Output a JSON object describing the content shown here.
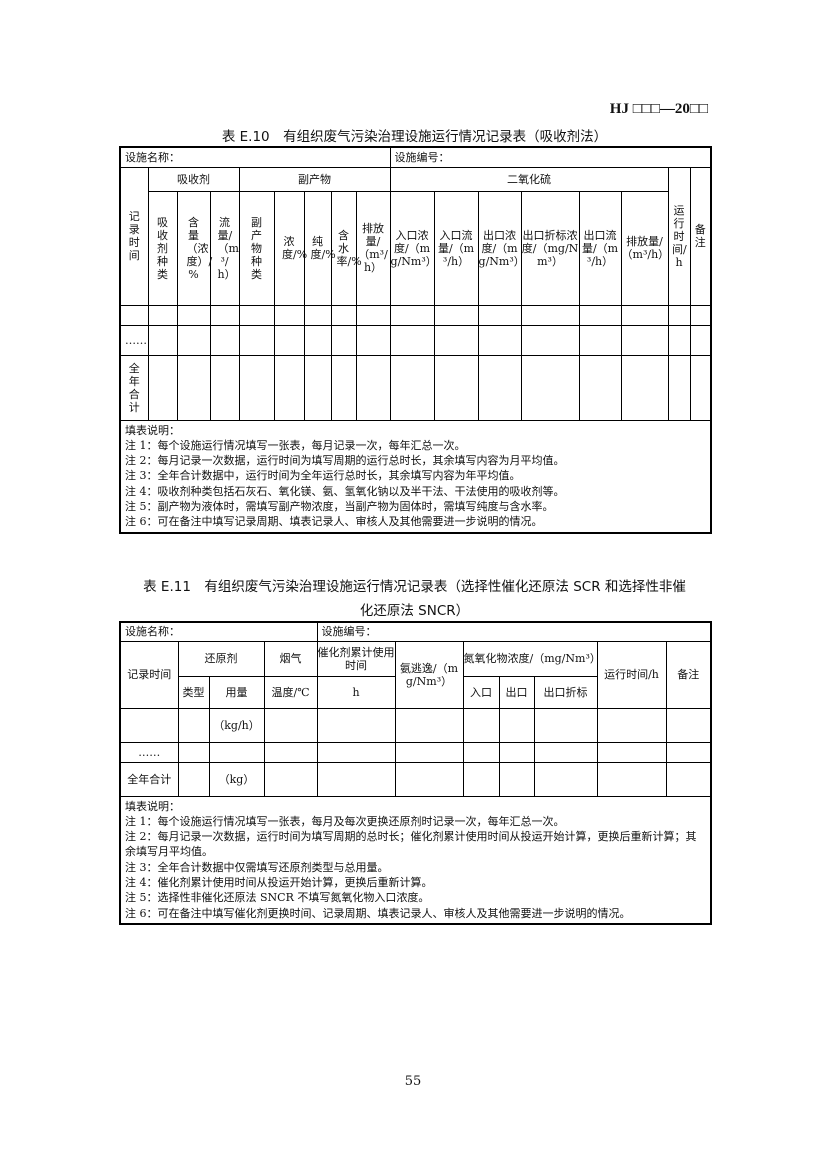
{
  "header": "HJ □□□—20□□",
  "t1": {
    "caption": "表 E.10　有组织废气污染治理设施运行情况记录表（吸收剂法）",
    "facility_name": "设施名称：",
    "facility_no": "设施编号：",
    "groups": [
      "吸收剂",
      "副产物",
      "二氧化硫"
    ],
    "record_time": "记录时间",
    "run_time": "运行时间/h",
    "remark": "备注",
    "cols": [
      "吸收剂种类",
      "含量（浓度）/ %",
      "流量/（m³/h）",
      "副产物种类",
      "浓度/%",
      "纯度/%",
      "含水率/%",
      "排放量/（m³/h）",
      "入口浓度/（mg/Nm³）",
      "入口流量/（m³/h）",
      "出口浓度/（mg/Nm³）",
      "出口折标浓度/（mg/Nm³）",
      "出口流量/（m³/h）",
      "排放量/（m³/h）"
    ],
    "dots": "……",
    "total": "全年合计",
    "notes": [
      "填表说明：",
      "注 1：每个设施运行情况填写一张表，每月记录一次，每年汇总一次。",
      "注 2：每月记录一次数据，运行时间为填写周期的运行总时长，其余填写内容为月平均值。",
      "注 3：全年合计数据中，运行时间为全年运行总时长，其余填写内容为年平均值。",
      "注 4：吸收剂种类包括石灰石、氧化镁、氨、氢氧化钠以及半干法、干法使用的吸收剂等。",
      "注 5：副产物为液体时，需填写副产物浓度，当副产物为固体时，需填写纯度与含水率。",
      "注 6：可在备注中填写记录周期、填表记录人、审核人及其他需要进一步说明的情况。"
    ]
  },
  "t2": {
    "caption1": "表 E.11　有组织废气污染治理设施运行情况记录表（选择性催化还原法 SCR 和选择性非催",
    "caption2": "化还原法 SNCR）",
    "facility_name": "设施名称：",
    "facility_no": "设施编号：",
    "record_time": "记录时间",
    "reductant": "还原剂",
    "flue": "烟气",
    "catalyst": "催化剂累计使用时间",
    "ammonia": "氨逃逸/（mg/Nm³）",
    "nox": "氮氧化物浓度/（mg/Nm³）",
    "run_time": "运行时间/h",
    "remark": "备注",
    "type": "类型",
    "amount": "用量",
    "temp": "温度/℃",
    "h": "h",
    "inlet": "入口",
    "outlet": "出口",
    "outlet_std": "出口折标",
    "kgh": "（kg/h）",
    "dots": "……",
    "total": "全年合计",
    "kg": "（kg）",
    "notes": [
      "填表说明：",
      "注 1：每个设施运行情况填写一张表，每月及每次更换还原剂时记录一次，每年汇总一次。",
      "注 2：每月记录一次数据，运行时间为填写周期的总时长；催化剂累计使用时间从投运开始计算，更换后重新计算；其余填写月平均值。",
      "注 3：全年合计数据中仅需填写还原剂类型与总用量。",
      "注 4：催化剂累计使用时间从投运开始计算，更换后重新计算。",
      "注 5：选择性非催化还原法 SNCR 不填写氮氧化物入口浓度。",
      "注 6：可在备注中填写催化剂更换时间、记录周期、填表记录人、审核人及其他需要进一步说明的情况。"
    ]
  },
  "page_number": "55"
}
